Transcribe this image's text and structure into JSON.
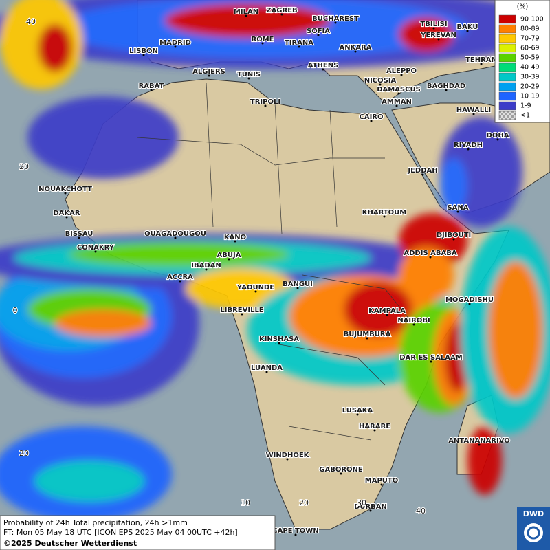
{
  "legend": {
    "unit": "(%)",
    "items": [
      {
        "label": "90-100",
        "color": "#cc0000"
      },
      {
        "label": "80-89",
        "color": "#ff7f00"
      },
      {
        "label": "70-79",
        "color": "#ffc800"
      },
      {
        "label": "60-69",
        "color": "#dcf000"
      },
      {
        "label": "50-59",
        "color": "#5ad200"
      },
      {
        "label": "40-49",
        "color": "#00dc78"
      },
      {
        "label": "30-39",
        "color": "#00c8c8"
      },
      {
        "label": "20-29",
        "color": "#00a0f0"
      },
      {
        "label": "10-19",
        "color": "#1e64ff"
      },
      {
        "label": "1-9",
        "color": "#3c3cc8"
      },
      {
        "label": "<1",
        "color": "#c8c8c8"
      }
    ]
  },
  "cities": [
    "MILAN",
    "ZAGREB",
    "BUCHAREST",
    "TBILISI",
    "MADRID",
    "ROME",
    "TIRANA",
    "SOFIA",
    "YEREVAN",
    "BAKU",
    "LISBON",
    "ANKARA",
    "ATHENS",
    "TEHRAN",
    "ALGIERS",
    "TUNIS",
    "ALEPPO",
    "NICOSIA",
    "BAGHDAD",
    "RABAT",
    "DAMASCUS",
    "AMMAN",
    "TRIPOLI",
    "HAWALLI",
    "CAIRO",
    "DOHA",
    "RIYADH",
    "JEDDAH",
    "NOUAKCHOTT",
    "SANA",
    "DAKAR",
    "KHARTOUM",
    "BISSAU",
    "OUAGADOUGOU",
    "DJIBOUTI",
    "KANO",
    "CONAKRY",
    "ABUJA",
    "ADDIS ABABA",
    "IBADAN",
    "ACCRA",
    "BANGUI",
    "YAOUNDE",
    "MOGADISHU",
    "LIBREVILLE",
    "KAMPALA",
    "NAIROBI",
    "BUJUMBURA",
    "KINSHASA",
    "DAR ES SALAAM",
    "LUANDA",
    "LUSAKA",
    "HARARE",
    "ANTANANARIVO",
    "WINDHOEK",
    "GABORONE",
    "MAPUTO",
    "DURBAN",
    "CAPE TOWN"
  ],
  "graticule": [
    "40",
    "20",
    "0",
    "20",
    "10",
    "20",
    "30",
    "40"
  ],
  "caption": {
    "line1": "Probability of 24h Total precipitation, 24h >1mm",
    "line2": "FT: Mon 05 May 18 UTC [ICON EPS 2025 May 04 00UTC +42h]",
    "line3": "©2025 Deutscher Wetterdienst"
  },
  "logo": "DWD"
}
